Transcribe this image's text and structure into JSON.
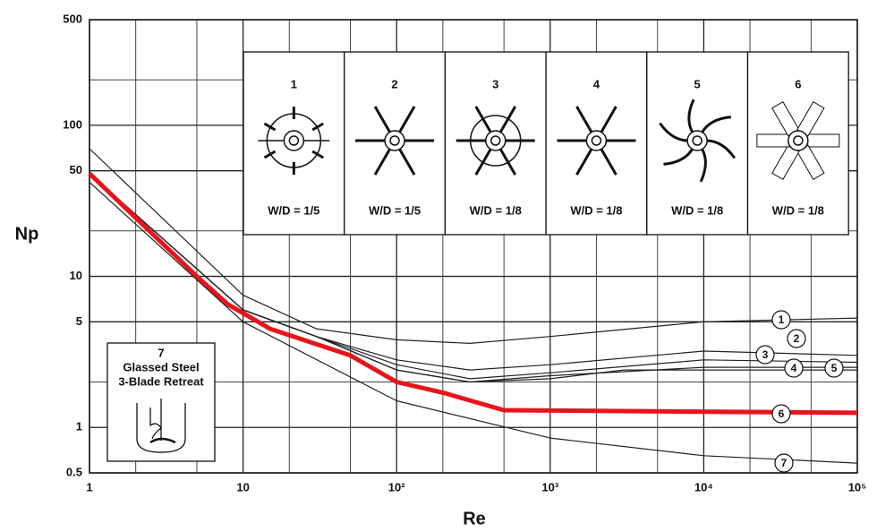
{
  "chart_data": {
    "type": "line",
    "xlabel": "Re",
    "ylabel": "Np",
    "xscale": "log",
    "yscale": "log",
    "xlim": [
      1,
      100000
    ],
    "ylim": [
      0.5,
      500
    ],
    "xticks": [
      1,
      10,
      {
        "value": 100,
        "label": "10²"
      },
      {
        "value": 1000,
        "label": "10³"
      },
      {
        "value": 10000,
        "label": "10⁴"
      },
      {
        "value": 100000,
        "label": "10⁵"
      }
    ],
    "yticks": [
      0.5,
      1,
      5,
      10,
      50,
      100,
      500
    ],
    "xminor": [
      2,
      5,
      20,
      50,
      200,
      500,
      2000,
      5000,
      20000,
      50000
    ],
    "yminor": [
      2,
      20,
      200
    ],
    "grid": true,
    "series": [
      {
        "name": "1",
        "color": "#222222",
        "x": [
          1,
          10,
          30,
          100,
          300,
          1000,
          10000,
          100000
        ],
        "values": [
          70,
          7.5,
          4.5,
          3.8,
          3.6,
          4,
          5,
          5.3
        ]
      },
      {
        "name": "2",
        "color": "#222222",
        "x": [
          1,
          10,
          30,
          100,
          300,
          1000,
          10000,
          100000
        ],
        "values": [
          48,
          6,
          4,
          2.8,
          2.4,
          2.6,
          3.2,
          3
        ]
      },
      {
        "name": "3",
        "color": "#222222",
        "x": [
          1,
          10,
          30,
          100,
          300,
          1000,
          10000,
          100000
        ],
        "values": [
          48,
          6,
          4,
          2.6,
          2.1,
          2.3,
          2.8,
          2.7
        ]
      },
      {
        "name": "4",
        "color": "#222222",
        "x": [
          1,
          10,
          30,
          100,
          300,
          1000,
          10000,
          100000
        ],
        "values": [
          48,
          6,
          4,
          2.4,
          2.0,
          2.2,
          2.5,
          2.5
        ]
      },
      {
        "name": "5",
        "color": "#222222",
        "x": [
          1,
          10,
          30,
          100,
          300,
          1000,
          3000,
          10000,
          100000
        ],
        "values": [
          48,
          6,
          4,
          2.4,
          2.0,
          2.1,
          2.4,
          2.4,
          2.4
        ]
      },
      {
        "name": "6",
        "color": "#e8141c",
        "x": [
          1,
          5,
          8,
          15,
          50,
          100,
          200,
          500,
          100000
        ],
        "values": [
          48,
          10,
          6.5,
          4.5,
          3,
          2,
          1.7,
          1.3,
          1.25
        ]
      },
      {
        "name": "7",
        "color": "#222222",
        "x": [
          1,
          10,
          100,
          1000,
          10000,
          100000
        ],
        "values": [
          42,
          5,
          1.5,
          0.85,
          0.65,
          0.58
        ]
      }
    ],
    "impellers": [
      {
        "label": "1",
        "ratio": "W/D = 1/5"
      },
      {
        "label": "2",
        "ratio": "W/D = 1/5"
      },
      {
        "label": "3",
        "ratio": "W/D = 1/8"
      },
      {
        "label": "4",
        "ratio": "W/D = 1/8"
      },
      {
        "label": "5",
        "ratio": "W/D = 1/8"
      },
      {
        "label": "6",
        "ratio": "W/D = 1/8"
      }
    ],
    "vessel": {
      "label": "7",
      "lines": [
        "Glassed Steel",
        "3-Blade Retreat"
      ]
    }
  }
}
